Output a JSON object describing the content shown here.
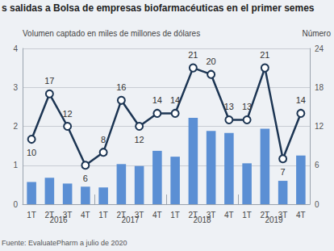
{
  "chart_data": {
    "type": "bar",
    "title": "s salidas a Bolsa de empresas biofarmacéuticas en el primer semes",
    "y_label": "Volumen captado en miles de millones de dólares",
    "y2_label": "Número",
    "source": "Fuente: EvaluatePharm a julio de 2020",
    "categories": [
      "1T",
      "2T",
      "3T",
      "4T",
      "1T",
      "2T",
      "3T",
      "4T",
      "1T",
      "2T",
      "3T",
      "4T",
      "1T",
      "2T",
      "3T",
      "4T"
    ],
    "year_labels": [
      "2016",
      "2017",
      "2018",
      "2019"
    ],
    "series": [
      {
        "type": "bar",
        "color": "#5b8fd4",
        "values": [
          0.57,
          0.68,
          0.53,
          0.45,
          0.43,
          1.03,
          0.98,
          1.37,
          1.22,
          2.22,
          1.88,
          1.83,
          1.05,
          1.94,
          0.6,
          1.25
        ]
      },
      {
        "type": "line",
        "axis": "y2",
        "color": "#1c3553",
        "marker": "circle",
        "data_labels": true,
        "values": [
          10,
          17,
          12,
          6,
          8,
          16,
          12,
          14,
          14,
          21,
          20,
          13,
          13,
          21,
          7,
          14
        ]
      }
    ],
    "ylim": [
      0,
      4
    ],
    "yticks": [
      0,
      1,
      2,
      3,
      4
    ],
    "y2lim": [
      0,
      24
    ],
    "y2ticks": [
      0,
      6,
      12,
      18,
      24
    ],
    "grid": true
  }
}
